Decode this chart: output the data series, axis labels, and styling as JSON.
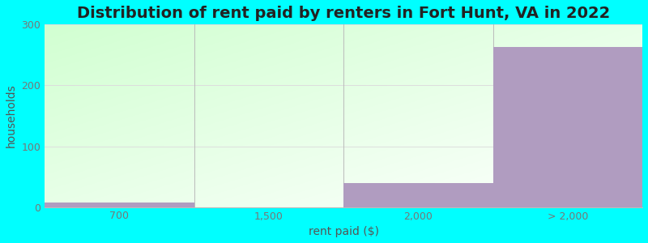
{
  "title": "Distribution of rent paid by renters in Fort Hunt, VA in 2022",
  "xlabel": "rent paid ($)",
  "ylabel": "households",
  "categories": [
    "700",
    "1,500",
    "2,000",
    "> 2,000"
  ],
  "values": [
    7,
    0,
    40,
    263
  ],
  "bar_color": "#b09cc0",
  "ylim": [
    0,
    300
  ],
  "yticks": [
    0,
    100,
    200,
    300
  ],
  "background_outer": "#00FFFF",
  "title_fontsize": 14,
  "axis_label_fontsize": 10,
  "tick_fontsize": 9,
  "tick_color": "#777777",
  "grid_color": "#dddddd"
}
